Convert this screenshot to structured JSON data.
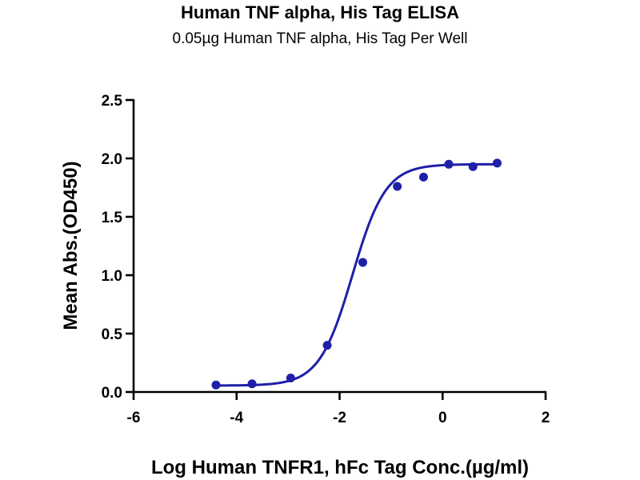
{
  "chart_data": {
    "type": "scatter",
    "title": "Human TNF alpha, His Tag ELISA",
    "subtitle": "0.05µg Human TNF alpha, His Tag Per Well",
    "xlabel": "Log Human TNFR1, hFc Tag Conc.(µg/ml)",
    "ylabel": "Mean Abs.(OD450)",
    "xlim": [
      -6,
      2
    ],
    "ylim": [
      0,
      2.5
    ],
    "xticks": [
      -6,
      -4,
      -2,
      0,
      2
    ],
    "yticks": [
      0.0,
      0.5,
      1.0,
      1.5,
      2.0,
      2.5
    ],
    "xtick_labels": [
      "-6",
      "-4",
      "-2",
      "0",
      "2"
    ],
    "ytick_labels": [
      "0.0",
      "0.5",
      "1.0",
      "1.5",
      "2.0",
      "2.5"
    ],
    "grid": false,
    "series": [
      {
        "x": [
          -4.4,
          -3.7,
          -2.95,
          -2.24,
          -1.55,
          -0.88,
          -0.37,
          0.12,
          0.59,
          1.06
        ],
        "y": [
          0.06,
          0.07,
          0.12,
          0.4,
          1.11,
          1.76,
          1.84,
          1.95,
          1.93,
          1.96
        ],
        "color": "#1f1fa8",
        "fit": "sigmoidal",
        "fit_params": {
          "bottom": 0.055,
          "top": 1.95,
          "logEC50": -1.75,
          "hillslope": 1.35
        }
      }
    ]
  }
}
